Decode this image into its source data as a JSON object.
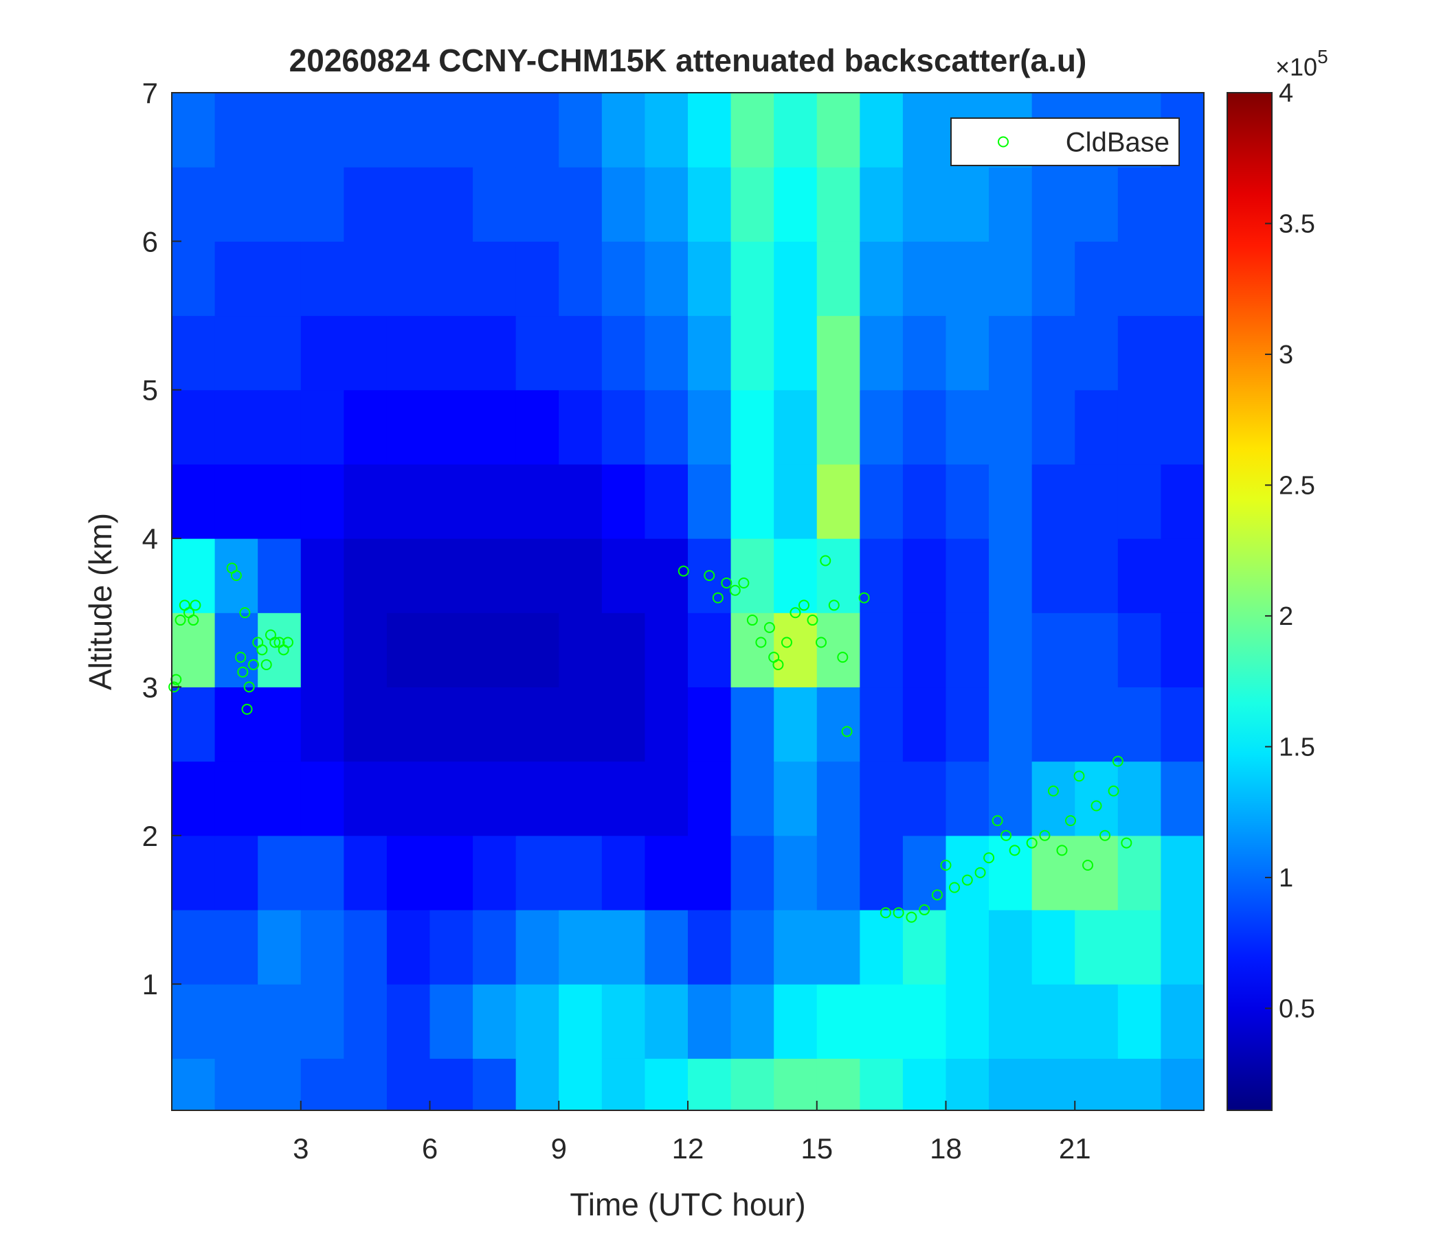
{
  "chart_data": {
    "type": "heatmap",
    "title": "20260824 CCNY-CHM15K attenuated backscatter(a.u)",
    "xlabel": "Time (UTC hour)",
    "ylabel": "Altitude (km)",
    "xlim": [
      0,
      24
    ],
    "ylim": [
      0.15,
      7
    ],
    "xticks": [
      3,
      6,
      9,
      12,
      15,
      18,
      21
    ],
    "yticks": [
      1,
      2,
      3,
      4,
      5,
      6,
      7
    ],
    "colormap": "jet",
    "clim": [
      0.11,
      4
    ],
    "cbar_ticks": [
      0.5,
      1,
      1.5,
      2,
      2.5,
      3,
      3.5,
      4
    ],
    "colorbar_multiplier": "×10",
    "colorbar_exponent": "5",
    "legend": "upper right",
    "heatmap": {
      "x_bins": [
        0,
        1,
        2,
        3,
        4,
        5,
        6,
        7,
        8,
        9,
        10,
        11,
        12,
        13,
        14,
        15,
        16,
        17,
        18,
        19,
        20,
        21,
        22,
        23,
        24
      ],
      "y_bins": [
        0.15,
        0.5,
        1,
        1.5,
        2,
        2.5,
        3,
        3.5,
        4,
        4.5,
        5,
        5.5,
        6,
        6.5,
        7
      ],
      "values": [
        [
          1.1,
          1.0,
          1.0,
          0.9,
          0.9,
          0.8,
          0.8,
          0.9,
          1.3,
          1.5,
          1.4,
          1.5,
          1.7,
          1.8,
          1.9,
          1.9,
          1.7,
          1.5,
          1.4,
          1.3,
          1.3,
          1.3,
          1.3,
          1.2
        ],
        [
          1.0,
          1.0,
          1.0,
          1.0,
          0.9,
          0.8,
          1.0,
          1.2,
          1.3,
          1.5,
          1.4,
          1.3,
          1.1,
          1.2,
          1.5,
          1.6,
          1.6,
          1.6,
          1.5,
          1.4,
          1.4,
          1.4,
          1.5,
          1.3
        ],
        [
          0.9,
          0.9,
          1.1,
          1.0,
          0.9,
          0.7,
          0.8,
          0.9,
          1.1,
          1.2,
          1.2,
          1.0,
          0.8,
          1.0,
          1.2,
          1.2,
          1.5,
          1.7,
          1.5,
          1.4,
          1.5,
          1.7,
          1.7,
          1.4
        ],
        [
          0.7,
          0.7,
          0.9,
          0.9,
          0.7,
          0.6,
          0.6,
          0.7,
          0.8,
          0.8,
          0.7,
          0.6,
          0.6,
          0.9,
          1.1,
          1.0,
          0.8,
          1.0,
          1.5,
          1.6,
          2.0,
          2.0,
          1.8,
          1.4
        ],
        [
          0.6,
          0.6,
          0.6,
          0.6,
          0.5,
          0.5,
          0.5,
          0.5,
          0.5,
          0.5,
          0.5,
          0.5,
          0.6,
          1.0,
          1.2,
          1.0,
          0.8,
          0.8,
          0.9,
          1.0,
          1.3,
          1.4,
          1.3,
          1.0
        ],
        [
          0.8,
          0.6,
          0.6,
          0.5,
          0.4,
          0.4,
          0.4,
          0.4,
          0.4,
          0.4,
          0.4,
          0.5,
          0.6,
          1.0,
          1.3,
          1.1,
          0.8,
          0.7,
          0.8,
          1.0,
          0.9,
          0.9,
          0.9,
          0.8
        ],
        [
          2.0,
          1.0,
          1.8,
          0.5,
          0.4,
          0.35,
          0.35,
          0.35,
          0.35,
          0.4,
          0.4,
          0.5,
          0.7,
          2.0,
          2.3,
          2.0,
          0.8,
          0.7,
          0.8,
          1.0,
          0.9,
          0.9,
          0.8,
          0.7
        ],
        [
          1.6,
          1.2,
          0.9,
          0.5,
          0.4,
          0.4,
          0.4,
          0.4,
          0.4,
          0.4,
          0.5,
          0.5,
          0.8,
          1.8,
          1.6,
          1.7,
          0.8,
          0.7,
          0.8,
          1.0,
          0.8,
          0.8,
          0.7,
          0.7
        ],
        [
          0.6,
          0.6,
          0.6,
          0.6,
          0.5,
          0.5,
          0.5,
          0.5,
          0.5,
          0.5,
          0.6,
          0.7,
          1.0,
          1.6,
          1.4,
          2.2,
          0.9,
          0.8,
          0.9,
          1.0,
          0.8,
          0.8,
          0.8,
          0.7
        ],
        [
          0.7,
          0.7,
          0.7,
          0.7,
          0.6,
          0.6,
          0.6,
          0.6,
          0.6,
          0.7,
          0.8,
          0.9,
          1.1,
          1.6,
          1.4,
          2.0,
          1.0,
          0.9,
          1.0,
          1.0,
          0.9,
          0.8,
          0.8,
          0.8
        ],
        [
          0.8,
          0.8,
          0.8,
          0.7,
          0.7,
          0.7,
          0.7,
          0.7,
          0.8,
          0.8,
          0.9,
          1.0,
          1.2,
          1.7,
          1.5,
          2.0,
          1.1,
          1.0,
          1.1,
          1.0,
          0.9,
          0.9,
          0.8,
          0.8
        ],
        [
          0.9,
          0.8,
          0.8,
          0.8,
          0.8,
          0.8,
          0.8,
          0.8,
          0.8,
          0.9,
          1.0,
          1.1,
          1.3,
          1.7,
          1.5,
          1.8,
          1.2,
          1.1,
          1.1,
          1.1,
          1.0,
          0.9,
          0.9,
          0.9
        ],
        [
          0.9,
          0.9,
          0.9,
          0.9,
          0.8,
          0.8,
          0.8,
          0.9,
          0.9,
          0.9,
          1.1,
          1.2,
          1.4,
          1.8,
          1.6,
          1.8,
          1.3,
          1.2,
          1.2,
          1.1,
          1.0,
          1.0,
          0.9,
          0.9
        ],
        [
          1.0,
          0.9,
          0.9,
          0.9,
          0.9,
          0.9,
          0.9,
          0.9,
          0.9,
          1.0,
          1.2,
          1.3,
          1.5,
          1.9,
          1.7,
          1.9,
          1.4,
          1.2,
          1.2,
          1.2,
          1.0,
          1.0,
          1.0,
          0.9
        ]
      ]
    },
    "series": [
      {
        "name": "CldBase",
        "type": "scatter",
        "color": "#00ff00",
        "x": [
          0.05,
          0.1,
          0.2,
          0.3,
          0.4,
          0.5,
          0.55,
          1.4,
          1.5,
          1.6,
          1.65,
          1.7,
          1.75,
          1.8,
          1.9,
          2.0,
          2.1,
          2.2,
          2.3,
          2.4,
          2.5,
          2.6,
          2.7,
          11.9,
          12.5,
          12.7,
          12.9,
          13.1,
          13.3,
          13.5,
          13.7,
          13.9,
          14.0,
          14.1,
          14.3,
          14.5,
          14.7,
          14.9,
          15.1,
          15.2,
          15.4,
          15.6,
          15.7,
          16.1,
          16.6,
          16.9,
          17.2,
          17.5,
          17.8,
          18.0,
          18.2,
          18.5,
          18.8,
          19.0,
          19.2,
          19.4,
          19.6,
          20.0,
          20.3,
          20.5,
          20.7,
          20.9,
          21.1,
          21.3,
          21.5,
          21.7,
          21.9,
          22.0,
          22.2
        ],
        "values": [
          3.0,
          3.05,
          3.45,
          3.55,
          3.5,
          3.45,
          3.55,
          3.8,
          3.75,
          3.2,
          3.1,
          3.5,
          2.85,
          3.0,
          3.15,
          3.3,
          3.25,
          3.15,
          3.35,
          3.3,
          3.3,
          3.25,
          3.3,
          3.78,
          3.75,
          3.6,
          3.7,
          3.65,
          3.7,
          3.45,
          3.3,
          3.4,
          3.2,
          3.15,
          3.3,
          3.5,
          3.55,
          3.45,
          3.3,
          3.85,
          3.55,
          3.2,
          2.7,
          3.6,
          1.48,
          1.48,
          1.45,
          1.5,
          1.6,
          1.8,
          1.65,
          1.7,
          1.75,
          1.85,
          2.1,
          2.0,
          1.9,
          1.95,
          2.0,
          2.3,
          1.9,
          2.1,
          2.4,
          1.8,
          2.2,
          2.0,
          2.3,
          2.5,
          1.95
        ]
      }
    ]
  }
}
